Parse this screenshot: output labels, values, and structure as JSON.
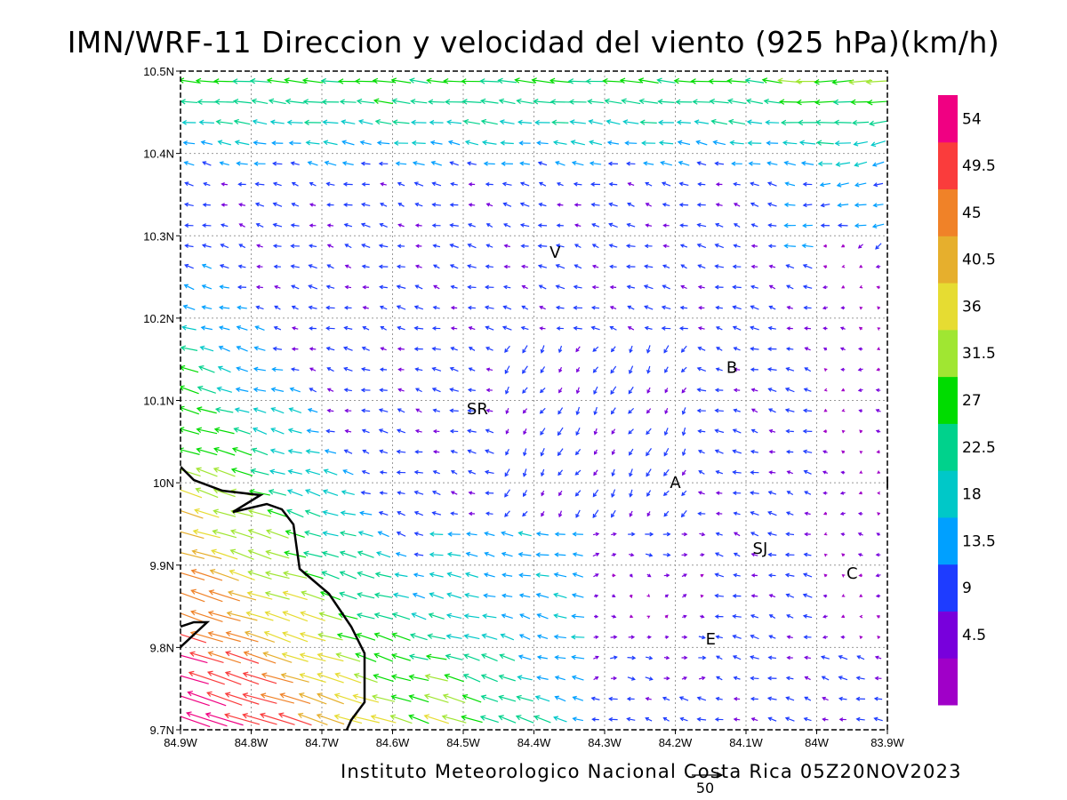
{
  "title": "IMN/WRF-11 Direccion y velocidad del viento (925 hPa)(km/h)",
  "footer": "Instituto Meteorologico Nacional Costa Rica 05Z20NOV2023",
  "chart_data": {
    "type": "vector-field",
    "lon_range": [
      -84.9,
      -83.9
    ],
    "lat_range": [
      9.7,
      10.5
    ],
    "x_ticks": [
      "84.9W",
      "84.8W",
      "84.7W",
      "84.6W",
      "84.5W",
      "84.4W",
      "84.3W",
      "84.2W",
      "84.1W",
      "84W",
      "83.9W"
    ],
    "y_ticks": [
      "9.7N",
      "9.8N",
      "9.9N",
      "10N",
      "10.1N",
      "10.2N",
      "10.3N",
      "10.4N",
      "10.5N"
    ],
    "grid": true,
    "places": [
      {
        "label": "V",
        "lon": -84.37,
        "lat": 10.28
      },
      {
        "label": "B",
        "lon": -84.12,
        "lat": 10.14
      },
      {
        "label": "SR",
        "lon": -84.48,
        "lat": 10.09
      },
      {
        "label": "A",
        "lon": -84.2,
        "lat": 10.0
      },
      {
        "label": "I",
        "lon": -83.9,
        "lat": 10.0
      },
      {
        "label": "SJ",
        "lon": -84.08,
        "lat": 9.92
      },
      {
        "label": "C",
        "lon": -83.95,
        "lat": 9.89
      },
      {
        "label": "E",
        "lon": -84.15,
        "lat": 9.81
      }
    ],
    "colorbar": {
      "labels": [
        "4.5",
        "9",
        "13.5",
        "18",
        "22.5",
        "27",
        "31.5",
        "36",
        "40.5",
        "45",
        "49.5",
        "54"
      ],
      "colors": [
        "#a000c8",
        "#7800dc",
        "#1e3cff",
        "#00a0ff",
        "#00c8c8",
        "#00d28c",
        "#00dc00",
        "#a0e632",
        "#e6dc32",
        "#e6af2d",
        "#f08228",
        "#fa3c3c",
        "#f00082"
      ]
    },
    "reference_vector": {
      "label": "50"
    }
  }
}
